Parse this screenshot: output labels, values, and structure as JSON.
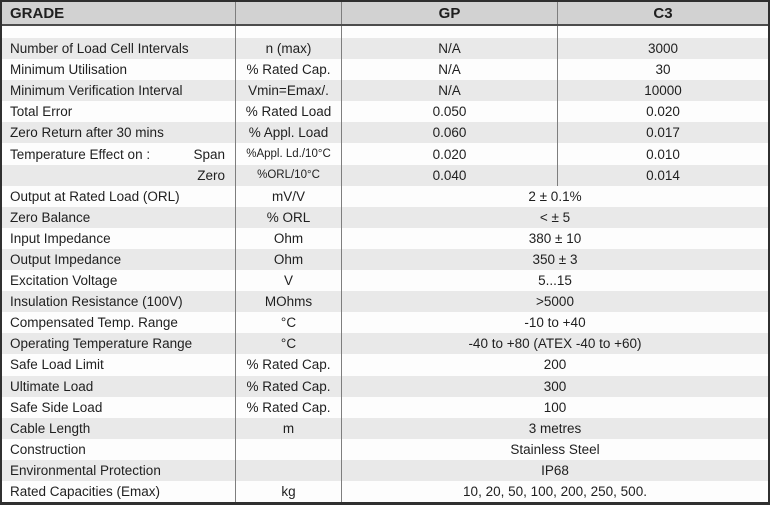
{
  "colors": {
    "header_bg": "#d2d2d2",
    "shade_bg": "#e9e9e9",
    "row_bg": "#fdfdfd",
    "border": "#2f2f2f",
    "divider": "#7e7e7e",
    "header_sep": "#4c4c4c",
    "text": "#1f1f1f"
  },
  "header": {
    "grade": "GRADE",
    "unit": "",
    "gp": "GP",
    "c3": "C3"
  },
  "rows": [
    {
      "label": "Number of Load Cell Intervals",
      "unit": "n (max)",
      "gp": "N/A",
      "c3": "3000"
    },
    {
      "label": "Minimum Utilisation",
      "unit": "% Rated Cap.",
      "gp": "N/A",
      "c3": "30"
    },
    {
      "label": "Minimum Verification Interval",
      "unit": "Vmin=Emax/.",
      "gp": "N/A",
      "c3": "10000"
    },
    {
      "label": "Total Error",
      "unit": "% Rated Load",
      "gp": "0.050",
      "c3": "0.020"
    },
    {
      "label": "Zero Return after 30 mins",
      "unit": "% Appl. Load",
      "gp": "0.060",
      "c3": "0.017"
    },
    {
      "label": "Temperature Effect on :",
      "label_right": "Span",
      "unit": "%Appl. Ld./10°C",
      "unit_small": true,
      "gp": "0.020",
      "c3": "0.010"
    },
    {
      "label": "",
      "label_right": "Zero",
      "unit": "%ORL/10°C",
      "unit_small": true,
      "gp": "0.040",
      "c3": "0.014"
    },
    {
      "label": "Output at Rated Load (ORL)",
      "unit": "mV/V",
      "span": "2 ± 0.1%"
    },
    {
      "label": "Zero Balance",
      "unit": "% ORL",
      "span": "< ± 5"
    },
    {
      "label": "Input Impedance",
      "unit": "Ohm",
      "span": "380 ± 10"
    },
    {
      "label": "Output Impedance",
      "unit": "Ohm",
      "span": "350 ± 3"
    },
    {
      "label": "Excitation Voltage",
      "unit": "V",
      "span": "5...15"
    },
    {
      "label": "Insulation Resistance (100V)",
      "unit": "MOhms",
      "span": ">5000"
    },
    {
      "label": "Compensated Temp. Range",
      "unit": "°C",
      "span": "-10  to +40"
    },
    {
      "label": "Operating Temperature Range",
      "unit": "°C",
      "span": "-40  to +80 (ATEX -40 to +60)"
    },
    {
      "label": "Safe Load Limit",
      "unit": "% Rated Cap.",
      "span": "200"
    },
    {
      "label": "Ultimate Load",
      "unit": "% Rated Cap.",
      "span": "300"
    },
    {
      "label": "Safe Side Load",
      "unit": "% Rated Cap.",
      "span": "100"
    },
    {
      "label": "Cable Length",
      "unit": "m",
      "span": "3 metres"
    },
    {
      "label": "Construction",
      "unit": "",
      "span": "Stainless Steel"
    },
    {
      "label": "Environmental Protection",
      "unit": "",
      "span": "IP68"
    },
    {
      "label": "Rated Capacities (Emax)",
      "unit": "kg",
      "span": "10, 20, 50, 100, 200, 250, 500."
    }
  ]
}
